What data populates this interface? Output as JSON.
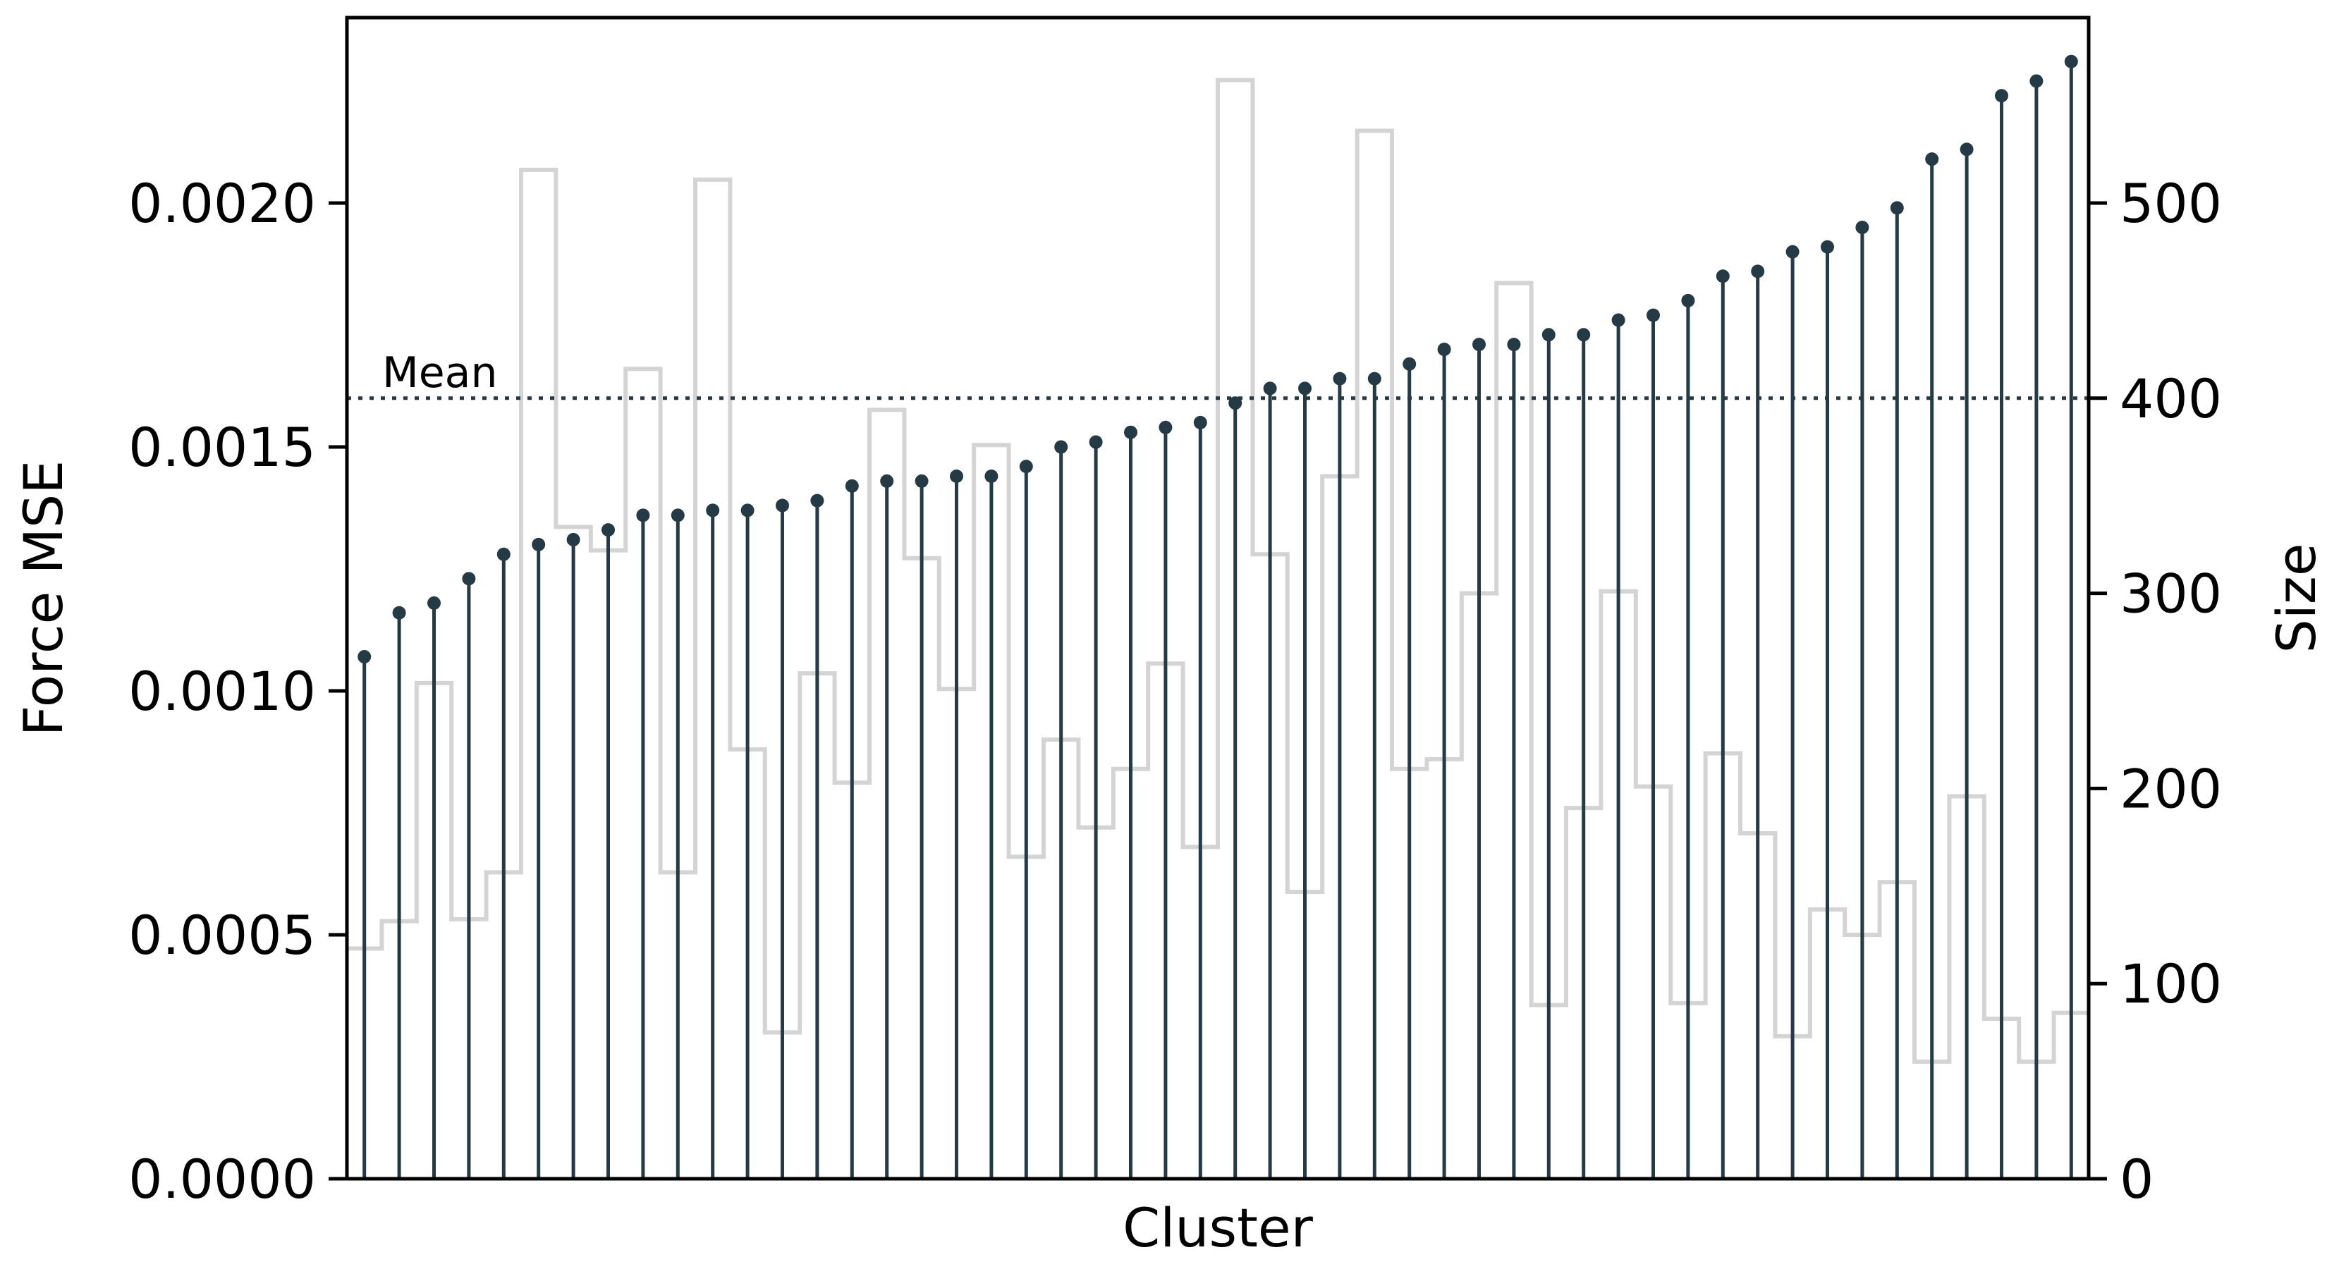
{
  "chart_data": {
    "type": "stem",
    "title": "",
    "xlabel": "Cluster",
    "ylabel": "Force MSE",
    "y2label": "Size",
    "ylim": [
      0,
      0.00238
    ],
    "y2lim": [
      0,
      595
    ],
    "yticks": [
      "0.0000",
      "0.0005",
      "0.0010",
      "0.0015",
      "0.0020"
    ],
    "yticks_values": [
      0,
      0.0005,
      0.001,
      0.0015,
      0.002
    ],
    "y2ticks": [
      "0",
      "100",
      "200",
      "300",
      "400",
      "500"
    ],
    "y2ticks_values": [
      0,
      100,
      200,
      300,
      400,
      500
    ],
    "grid": false,
    "mean_label": "Mean",
    "mean_value": 0.0016,
    "colors": {
      "stem": "#243b45",
      "size_step": "#d4d4d4",
      "axis": "#000000"
    },
    "series": [
      {
        "name": "Force MSE",
        "axis": "left",
        "values": [
          0.00107,
          0.00116,
          0.00118,
          0.00123,
          0.00128,
          0.0013,
          0.00131,
          0.00133,
          0.00136,
          0.00136,
          0.00137,
          0.00137,
          0.00138,
          0.00139,
          0.00142,
          0.00143,
          0.00143,
          0.00144,
          0.00144,
          0.00146,
          0.0015,
          0.00151,
          0.00153,
          0.00154,
          0.00155,
          0.00159,
          0.00162,
          0.00162,
          0.00164,
          0.00164,
          0.00167,
          0.0017,
          0.00171,
          0.00171,
          0.00173,
          0.00173,
          0.00176,
          0.00177,
          0.0018,
          0.00185,
          0.00186,
          0.0019,
          0.00191,
          0.00195,
          0.00199,
          0.00209,
          0.00211,
          0.00222,
          0.00225,
          0.00229
        ]
      },
      {
        "name": "Size",
        "axis": "right",
        "values": [
          118,
          132,
          254,
          133,
          157,
          517,
          334,
          322,
          415,
          157,
          512,
          220,
          75,
          259,
          203,
          394,
          318,
          251,
          376,
          165,
          225,
          180,
          210,
          264,
          170,
          563,
          320,
          147,
          360,
          537,
          210,
          215,
          300,
          459,
          89,
          190,
          301,
          201,
          90,
          218,
          177,
          73,
          138,
          125,
          152,
          60,
          196,
          82,
          60,
          85
        ]
      }
    ]
  }
}
